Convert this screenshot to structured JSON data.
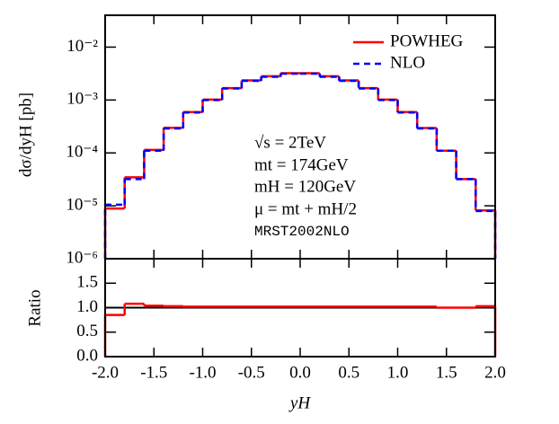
{
  "chart_data": [
    {
      "type": "histogram",
      "log_y": true,
      "y_label": "dσ/dyH [pb]",
      "bins": [
        -2.0,
        -1.8,
        -1.6,
        -1.4,
        -1.2,
        -1.0,
        -0.8,
        -0.6,
        -0.4,
        -0.2,
        0.0,
        0.2,
        0.4,
        0.6,
        0.8,
        1.0,
        1.2,
        1.4,
        1.6,
        1.8,
        2.0
      ],
      "xlim": [
        -2,
        2
      ],
      "ylim": [
        1e-06,
        0.04
      ],
      "yticks": [
        {
          "value": 1e-06,
          "label": "10⁻⁶"
        },
        {
          "value": 1e-05,
          "label": "10⁻⁵"
        },
        {
          "value": 0.0001,
          "label": "10⁻⁴"
        },
        {
          "value": 0.001,
          "label": "10⁻³"
        },
        {
          "value": 0.01,
          "label": "10⁻²"
        }
      ],
      "legend_position": "upper right",
      "series": [
        {
          "name": "POWHEG",
          "color": "#ff0000",
          "line_style": "solid",
          "values": [
            8.9e-06,
            3.46e-05,
            0.000114,
            0.000299,
            0.000592,
            0.00102,
            0.00168,
            0.00235,
            0.00281,
            0.00321,
            0.00321,
            0.00281,
            0.00235,
            0.00168,
            0.00102,
            0.000592,
            0.000296,
            0.00011,
            3.2e-05,
            8.2e-06
          ]
        },
        {
          "name": "NLO",
          "color": "#0000ff",
          "line_style": "dashed",
          "values": [
            1.05e-05,
            3.2e-05,
            0.00011,
            0.00029,
            0.00058,
            0.001,
            0.00165,
            0.0023,
            0.00275,
            0.00315,
            0.00315,
            0.00275,
            0.0023,
            0.00165,
            0.001,
            0.00058,
            0.00029,
            0.00011,
            3.2e-05,
            8e-06
          ]
        }
      ],
      "annotations": [
        "√s = 2TeV",
        "mt = 174GeV",
        "mH = 120GeV",
        "μ = mt + mH/2",
        "MRST2002NLO"
      ]
    },
    {
      "type": "ratio",
      "x_label": "yH",
      "y_label": "Ratio",
      "xlim": [
        -2,
        2
      ],
      "ylim": [
        0,
        2
      ],
      "xticks": [
        {
          "value": -2,
          "label": "-2.0"
        },
        {
          "value": -1.5,
          "label": "-1.5"
        },
        {
          "value": -1,
          "label": "-1.0"
        },
        {
          "value": -0.5,
          "label": "-0.5"
        },
        {
          "value": 0,
          "label": "0.0"
        },
        {
          "value": 0.5,
          "label": "0.5"
        },
        {
          "value": 1,
          "label": "1.0"
        },
        {
          "value": 1.5,
          "label": "1.5"
        },
        {
          "value": 2,
          "label": "2.0"
        }
      ],
      "yticks": [
        {
          "value": 0,
          "label": "0.0"
        },
        {
          "value": 0.5,
          "label": "0.5"
        },
        {
          "value": 1,
          "label": "1.0"
        },
        {
          "value": 1.5,
          "label": "1.5"
        }
      ],
      "reference_line": 1,
      "series": [
        {
          "color": "#ff0000",
          "values": [
            0.85,
            1.08,
            1.04,
            1.03,
            1.02,
            1.02,
            1.02,
            1.02,
            1.02,
            1.02,
            1.02,
            1.02,
            1.02,
            1.02,
            1.02,
            1.02,
            1.02,
            1.0,
            1.0,
            1.03
          ]
        }
      ]
    }
  ]
}
